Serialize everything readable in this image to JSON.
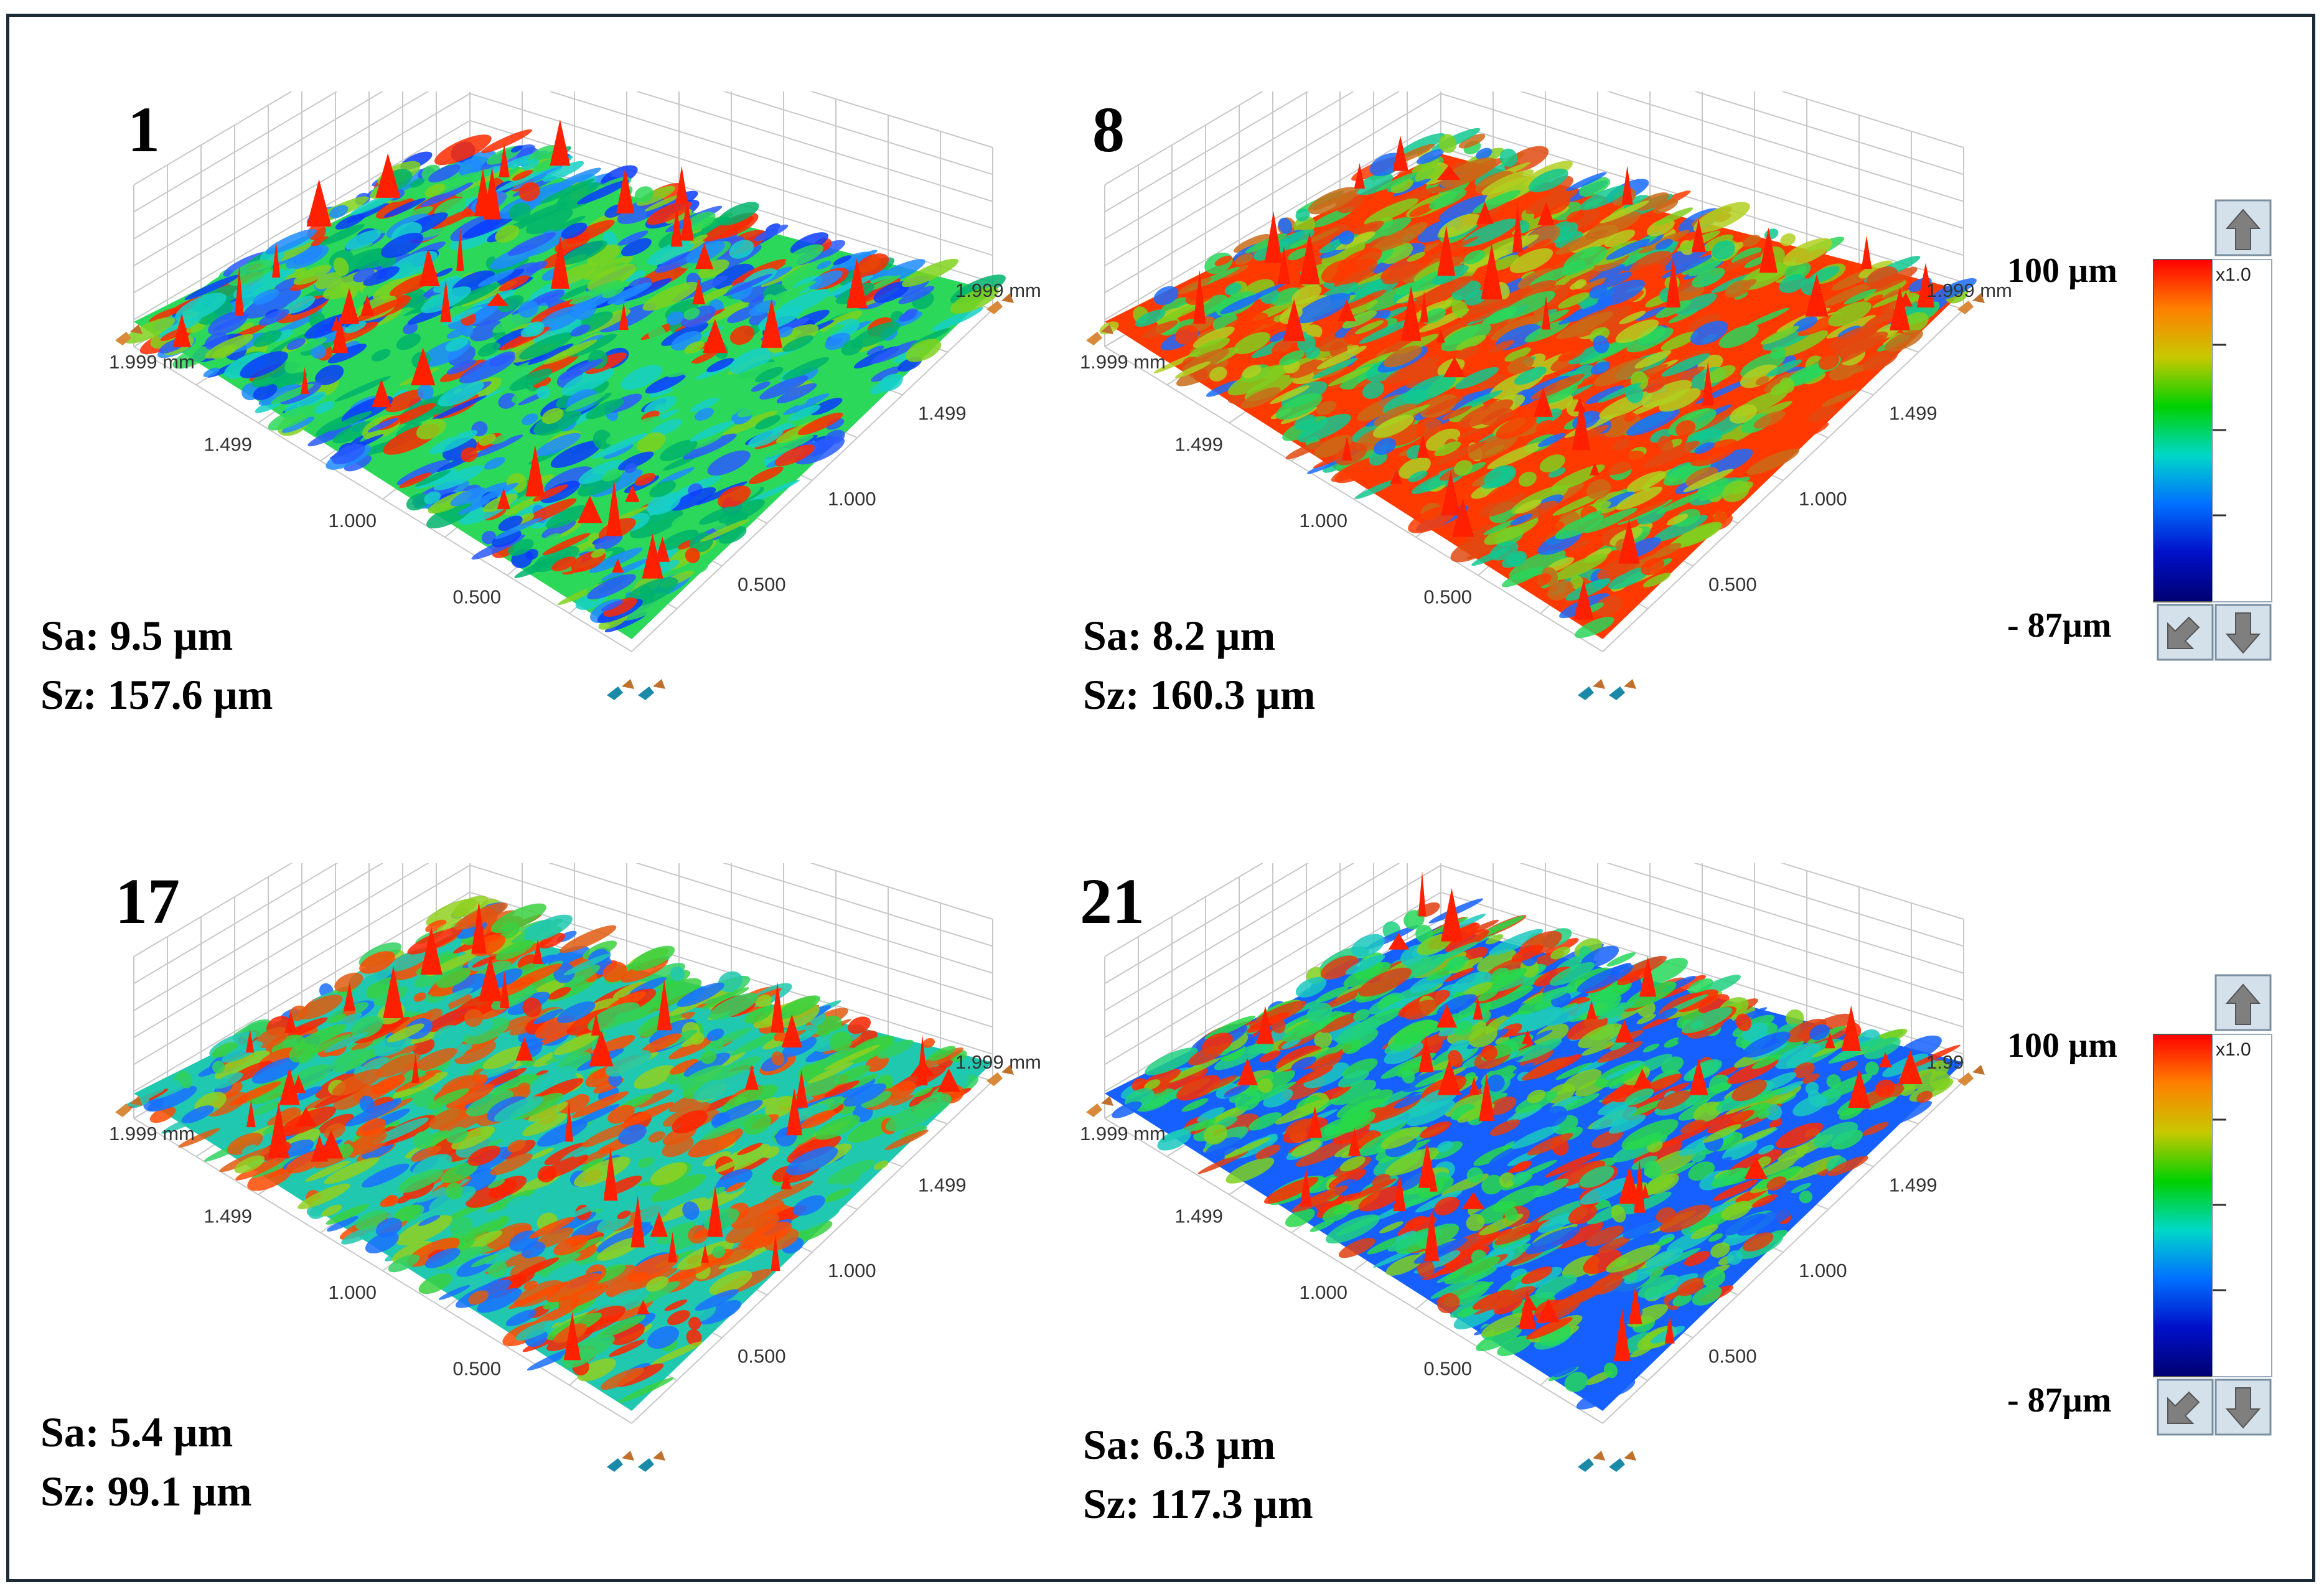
{
  "panels": [
    {
      "number": "1",
      "sa": "Sa: 9.5 µm",
      "sz": "Sz: 157.6 µm",
      "axis": {
        "edge": "1.999 mm",
        "edge2": "1.999 mm",
        "ticks_left": [
          "1.499",
          "1.000",
          "0.500"
        ],
        "ticks_right": [
          "1.499",
          "1.000",
          "0.500"
        ]
      }
    },
    {
      "number": "8",
      "sa": "Sa: 8.2 µm",
      "sz": "Sz: 160.3 µm",
      "axis": {
        "edge": "1.999 mm",
        "edge2": "1.999 mm",
        "ticks_left": [
          "1.499",
          "1.000",
          "0.500"
        ],
        "ticks_right": [
          "1.499",
          "1.000",
          "0.500"
        ]
      }
    },
    {
      "number": "17",
      "sa": "Sa: 5.4 µm",
      "sz": "Sz: 99.1 µm",
      "axis": {
        "edge": "1.999 mm",
        "edge2": "1.999 mm",
        "ticks_left": [
          "1.499",
          "1.000",
          "0.500"
        ],
        "ticks_right": [
          "1.499",
          "1.000",
          "0.500"
        ]
      }
    },
    {
      "number": "21",
      "sa": "Sa: 6.3 µm",
      "sz": "Sz: 117.3 µm",
      "axis": {
        "edge": "1.999 mm",
        "edge2": "1.99",
        "ticks_left": [
          "1.499",
          "1.000",
          "0.500"
        ],
        "ticks_right": [
          "1.499",
          "1.000",
          "0.500"
        ]
      }
    }
  ],
  "height_scale": {
    "max_label": "100 µm",
    "min_label": "- 87µm",
    "multiplier": "x1.0",
    "colors": [
      "#ff0000",
      "#ff7f00",
      "#c8c800",
      "#00d000",
      "#00d8c8",
      "#0070ff",
      "#0010c8",
      "#000070"
    ]
  },
  "icons": {
    "rotate": "rotate-arrows-icon",
    "scale_up": "arrow-up-icon",
    "scale_down": "arrow-down-icon",
    "scale_reset": "arrow-diagonal-icon"
  }
}
